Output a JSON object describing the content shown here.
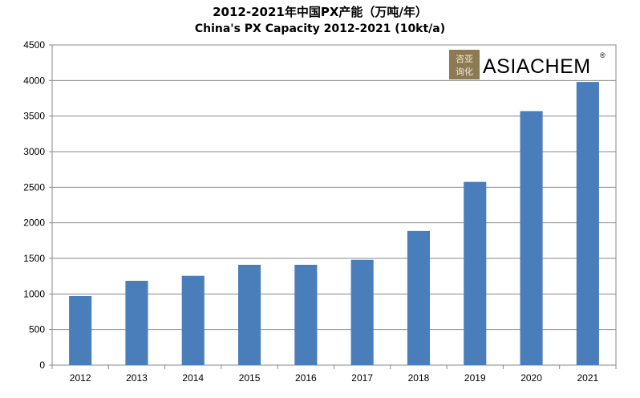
{
  "chart_data": {
    "type": "bar",
    "title": "2012-2021年中国PX产能（万吨/年）",
    "subtitle": "China's  PX Capacity 2012-2021 (10kt/a)",
    "categories": [
      "2012",
      "2013",
      "2014",
      "2015",
      "2016",
      "2017",
      "2018",
      "2019",
      "2020",
      "2021"
    ],
    "values": [
      970,
      1185,
      1255,
      1410,
      1410,
      1480,
      1885,
      2575,
      3570,
      3980
    ],
    "xlabel": "",
    "ylabel": "",
    "ylim": [
      0,
      4500
    ],
    "yticks": [
      0,
      500,
      1000,
      1500,
      2000,
      2500,
      3000,
      3500,
      4000,
      4500
    ],
    "grid": true,
    "legend": "none",
    "bar_color": "#4a7ebb",
    "grid_color": "#898989"
  },
  "logo": {
    "text": "ASIACHEM",
    "registered_mark": "®",
    "seal_text": "咨亚询化"
  }
}
